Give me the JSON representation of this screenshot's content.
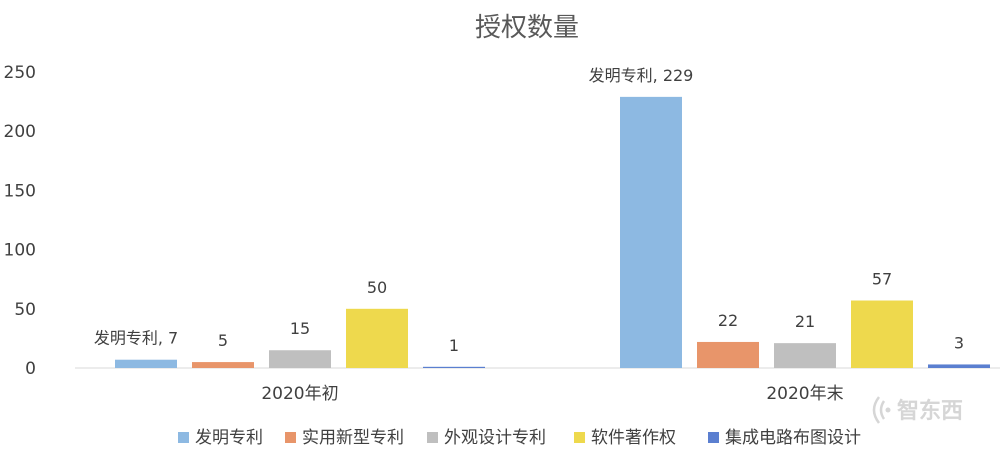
{
  "chart_data": {
    "type": "bar",
    "title": "授权数量",
    "categories": [
      "2020年初",
      "2020年末"
    ],
    "series": [
      {
        "name": "发明专利",
        "values": [
          7,
          229
        ],
        "color": "#8db9e2",
        "labels": [
          "发明专利, 7",
          "发明专利, 229"
        ]
      },
      {
        "name": "实用新型专利",
        "values": [
          5,
          22
        ],
        "color": "#e8956a",
        "labels": [
          "5",
          "22"
        ]
      },
      {
        "name": "外观设计专利",
        "values": [
          15,
          21
        ],
        "color": "#bfbfbf",
        "labels": [
          "15",
          "21"
        ]
      },
      {
        "name": "软件著作权",
        "values": [
          50,
          57
        ],
        "color": "#eed94d",
        "labels": [
          "50",
          "57"
        ]
      },
      {
        "name": "集成电路布图设计",
        "values": [
          1,
          3
        ],
        "color": "#5b7fd0",
        "labels": [
          "1",
          "3"
        ]
      }
    ],
    "yticks": [
      0,
      50,
      100,
      150,
      200,
      250
    ],
    "ylim": [
      0,
      250
    ],
    "grid": false,
    "legend_position": "bottom"
  },
  "watermark": {
    "text": "智东西",
    "icon": "wifi-signal-icon"
  }
}
